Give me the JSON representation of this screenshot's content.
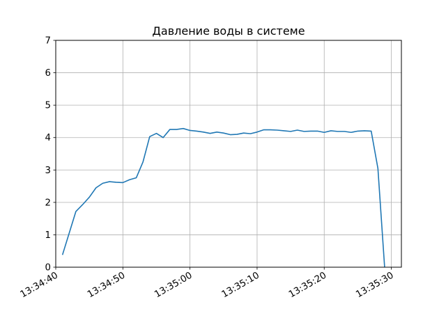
{
  "chart_data": {
    "type": "line",
    "title": "Давление воды в системе",
    "xlabel": "",
    "ylabel": "",
    "grid": true,
    "ylim": [
      0,
      7
    ],
    "y_ticks": [
      0,
      1,
      2,
      3,
      4,
      5,
      6,
      7
    ],
    "xlim": [
      "13:34:40",
      "13:35:31.5"
    ],
    "x_ticks": [
      "13:34:40",
      "13:34:50",
      "13:35:00",
      "13:35:10",
      "13:35:20",
      "13:35:30"
    ],
    "line_color": "#1f77b4",
    "series": [
      {
        "x": [
          "13:34:41",
          "13:34:42",
          "13:34:43",
          "13:34:44",
          "13:34:45",
          "13:34:46",
          "13:34:47",
          "13:34:48",
          "13:34:49",
          "13:34:50",
          "13:34:51",
          "13:34:52",
          "13:34:53",
          "13:34:54",
          "13:34:55",
          "13:34:56",
          "13:34:57",
          "13:34:58",
          "13:34:59",
          "13:35:00",
          "13:35:01",
          "13:35:02",
          "13:35:03",
          "13:35:04",
          "13:35:05",
          "13:35:06",
          "13:35:07",
          "13:35:08",
          "13:35:09",
          "13:35:10",
          "13:35:11",
          "13:35:12",
          "13:35:13",
          "13:35:14",
          "13:35:15",
          "13:35:16",
          "13:35:17",
          "13:35:18",
          "13:35:19",
          "13:35:20",
          "13:35:21",
          "13:35:22",
          "13:35:23",
          "13:35:24",
          "13:35:25",
          "13:35:26",
          "13:35:27",
          "13:35:28",
          "13:35:29"
        ],
        "values": [
          0.38,
          1.05,
          1.72,
          1.93,
          2.16,
          2.45,
          2.59,
          2.64,
          2.62,
          2.61,
          2.7,
          2.76,
          3.25,
          4.03,
          4.13,
          4.0,
          4.25,
          4.25,
          4.28,
          4.22,
          4.2,
          4.17,
          4.13,
          4.17,
          4.14,
          4.09,
          4.1,
          4.14,
          4.12,
          4.17,
          4.24,
          4.24,
          4.23,
          4.21,
          4.19,
          4.23,
          4.19,
          4.2,
          4.2,
          4.16,
          4.21,
          4.19,
          4.19,
          4.16,
          4.2,
          4.21,
          4.2,
          3.05,
          0.0
        ]
      }
    ]
  }
}
